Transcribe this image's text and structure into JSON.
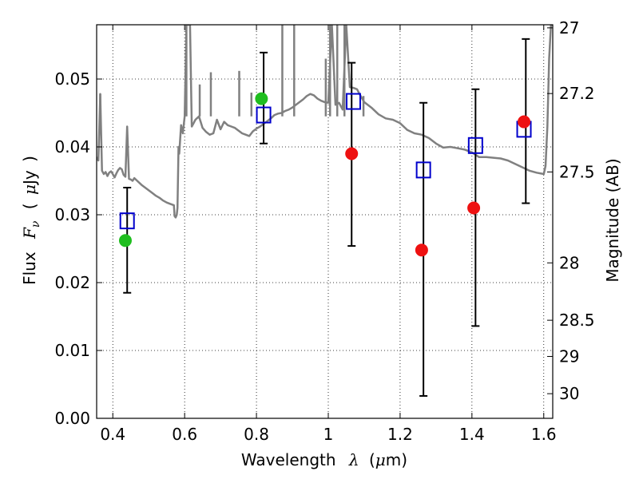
{
  "chart_data": {
    "type": "scatter",
    "title": "",
    "xlabel": {
      "prefix": "Wavelength",
      "symbol": "λ",
      "unit_open": "(",
      "unit_mu": "μ",
      "unit_rest": "m)"
    },
    "ylabel": {
      "prefix": "Flux",
      "symbol": "F",
      "subscript": "ν",
      "unit_open": "(",
      "unit_mu": "μ",
      "unit_rest": "Jy",
      "unit_close": ")"
    },
    "y2label": "Magnitude (AB)",
    "xlim": [
      0.355,
      1.625
    ],
    "ylim": [
      0.0,
      0.058
    ],
    "x_ticks": [
      0.4,
      0.6,
      0.8,
      1.0,
      1.2,
      1.4,
      1.6
    ],
    "x_tick_labels": [
      "0.4",
      "0.6",
      "0.8",
      "1",
      "1.2",
      "1.4",
      "1.6"
    ],
    "y_ticks": [
      0.0,
      0.01,
      0.02,
      0.03,
      0.04,
      0.05
    ],
    "y_tick_labels": [
      "0.00",
      "0.01",
      "0.02",
      "0.03",
      "0.04",
      "0.05"
    ],
    "y2_ticks": [
      27,
      27.2,
      27.5,
      28,
      28.5,
      29,
      30
    ],
    "y2_tick_labels": [
      "27",
      "27.2",
      "27.5",
      "28",
      "28.5",
      "29",
      "30"
    ],
    "grid": true,
    "colors": {
      "sed": "#808080",
      "photometry_green": "#1fbe1f",
      "photometry_red": "#ee1111",
      "model_box": "#0000cc",
      "errorbar": "#000000"
    },
    "series": [
      {
        "kind": "template_sed_line",
        "x": [
          0.355,
          0.36,
          0.365,
          0.37,
          0.375,
          0.38,
          0.385,
          0.39,
          0.395,
          0.4,
          0.405,
          0.41,
          0.415,
          0.42,
          0.425,
          0.43,
          0.435,
          0.44,
          0.445,
          0.45,
          0.455,
          0.46,
          0.47,
          0.48,
          0.49,
          0.5,
          0.51,
          0.52,
          0.53,
          0.54,
          0.55,
          0.56,
          0.57,
          0.572,
          0.575,
          0.578,
          0.58,
          0.583,
          0.585,
          0.59,
          0.595,
          0.6,
          0.605,
          0.61,
          0.615,
          0.62,
          0.625,
          0.63,
          0.64,
          0.65,
          0.66,
          0.67,
          0.68,
          0.69,
          0.7,
          0.71,
          0.72,
          0.73,
          0.74,
          0.75,
          0.76,
          0.77,
          0.78,
          0.79,
          0.8,
          0.81,
          0.82,
          0.83,
          0.84,
          0.85,
          0.86,
          0.87,
          0.88,
          0.89,
          0.9,
          0.91,
          0.92,
          0.93,
          0.94,
          0.95,
          0.96,
          0.97,
          0.98,
          0.99,
          1.0,
          1.01,
          1.02,
          1.03,
          1.04,
          1.05,
          1.06,
          1.07,
          1.08,
          1.09,
          1.1,
          1.12,
          1.14,
          1.16,
          1.18,
          1.2,
          1.22,
          1.24,
          1.26,
          1.28,
          1.3,
          1.32,
          1.34,
          1.36,
          1.38,
          1.4,
          1.42,
          1.44,
          1.46,
          1.48,
          1.5,
          1.52,
          1.54,
          1.56,
          1.58,
          1.6,
          1.605,
          1.61,
          1.615,
          1.62,
          1.625
        ],
        "y": [
          0.0385,
          0.038,
          0.0478,
          0.0365,
          0.036,
          0.0363,
          0.0357,
          0.0362,
          0.0364,
          0.036,
          0.0355,
          0.0361,
          0.0366,
          0.0369,
          0.0367,
          0.0359,
          0.0356,
          0.043,
          0.0353,
          0.0352,
          0.035,
          0.0354,
          0.0349,
          0.0344,
          0.034,
          0.0336,
          0.0332,
          0.0328,
          0.0325,
          0.0321,
          0.0318,
          0.0316,
          0.0314,
          0.0298,
          0.0296,
          0.03,
          0.031,
          0.04,
          0.039,
          0.0432,
          0.042,
          0.0445,
          0.058,
          0.058,
          0.058,
          0.043,
          0.0435,
          0.044,
          0.0445,
          0.0428,
          0.0422,
          0.0418,
          0.042,
          0.044,
          0.0426,
          0.0437,
          0.0432,
          0.043,
          0.0428,
          0.0424,
          0.042,
          0.0418,
          0.0416,
          0.0423,
          0.0427,
          0.043,
          0.0434,
          0.0438,
          0.0442,
          0.0447,
          0.0449,
          0.045,
          0.0453,
          0.0455,
          0.0458,
          0.0462,
          0.0466,
          0.047,
          0.0475,
          0.0478,
          0.0476,
          0.0471,
          0.0468,
          0.0466,
          0.0465,
          0.058,
          0.0462,
          0.0465,
          0.0455,
          0.058,
          0.0488,
          0.0487,
          0.0485,
          0.0475,
          0.0466,
          0.0458,
          0.0448,
          0.0442,
          0.044,
          0.0435,
          0.0425,
          0.042,
          0.0418,
          0.0413,
          0.0405,
          0.0399,
          0.04,
          0.0398,
          0.0396,
          0.0392,
          0.0385,
          0.0385,
          0.0384,
          0.0383,
          0.038,
          0.0375,
          0.037,
          0.0365,
          0.0362,
          0.036,
          0.0372,
          0.043,
          0.053,
          0.058,
          0.058
        ]
      },
      {
        "kind": "spike_peaks",
        "x": [
          0.365,
          0.444,
          0.605,
          0.642,
          0.673,
          0.752,
          0.786,
          0.872,
          0.905,
          0.993,
          1.005,
          1.025,
          1.045,
          1.098,
          1.24,
          1.41,
          1.49,
          1.52,
          1.54
        ],
        "y": [
          0.0478,
          0.043,
          0.058,
          0.0492,
          0.051,
          0.0512,
          0.048,
          0.058,
          0.058,
          0.053,
          0.058,
          0.058,
          0.058,
          0.0475,
          0.0436,
          0.044,
          0.0402,
          0.041,
          0.0428
        ]
      },
      {
        "kind": "observed_photometry_green",
        "x": [
          0.435,
          0.814
        ],
        "y": [
          0.0262,
          0.0471
        ]
      },
      {
        "kind": "observed_photometry_red",
        "x": [
          1.065,
          1.26,
          1.405,
          1.545
        ],
        "y": [
          0.039,
          0.0248,
          0.031,
          0.0437
        ]
      },
      {
        "kind": "model_synthetic_photometry",
        "x": [
          0.44,
          0.82,
          1.07,
          1.265,
          1.41,
          1.545
        ],
        "y": [
          0.0291,
          0.0447,
          0.0467,
          0.0366,
          0.0402,
          0.0426
        ]
      },
      {
        "kind": "error_bars",
        "x": [
          0.44,
          0.82,
          1.065,
          1.265,
          1.41,
          1.55
        ],
        "ylo": [
          0.0185,
          0.0405,
          0.0254,
          0.0033,
          0.0136,
          0.0317
        ],
        "yhi": [
          0.034,
          0.0539,
          0.0524,
          0.0465,
          0.0485,
          0.0559
        ]
      }
    ]
  }
}
